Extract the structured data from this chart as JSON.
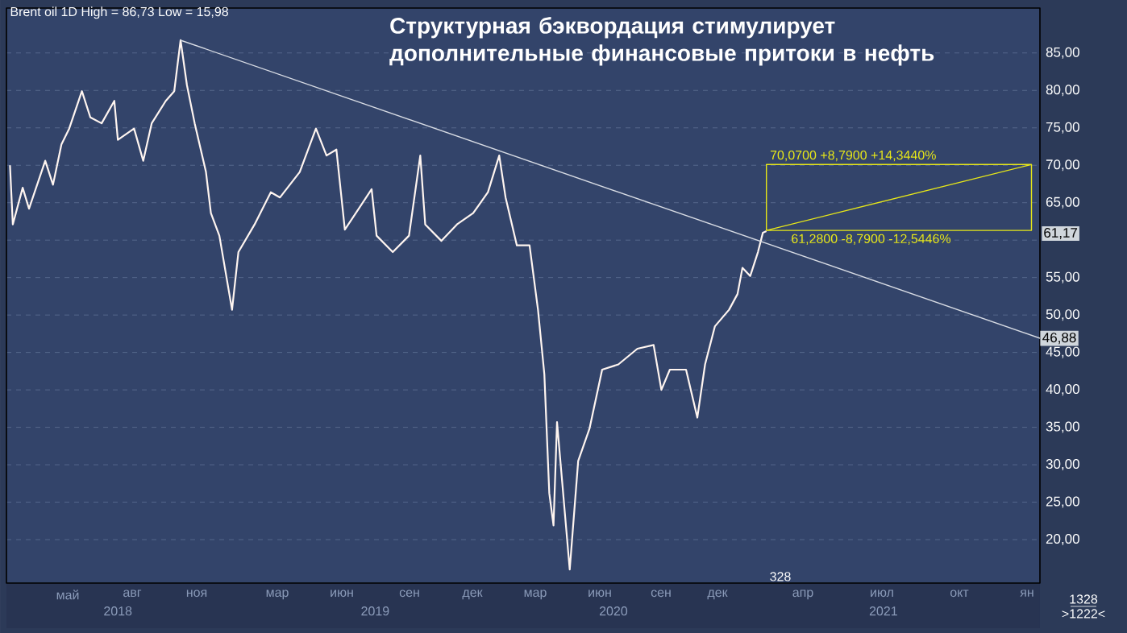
{
  "chart_data": {
    "type": "line",
    "title": "Структурная бэквордация стимулирует дополнительные финансовые притоки в нефть",
    "xlim": [
      "2018-02-08",
      "2022-02-13"
    ],
    "xticks": [
      {
        "value": "2018-07-16",
        "label": "2018"
      },
      {
        "value": "2019-07-16",
        "label": "2019"
      },
      {
        "value": "2020-06-18",
        "label": "2020"
      },
      {
        "value": "2021-07-06",
        "label": "2021"
      }
    ],
    "ylim": [
      14.2,
      91
    ],
    "yticks": [
      {
        "value": 20,
        "label": "20,00"
      },
      {
        "value": 25,
        "label": "25,00"
      },
      {
        "value": 30,
        "label": "30,00"
      },
      {
        "value": 35,
        "label": "35,00"
      },
      {
        "value": 40,
        "label": "40,00"
      },
      {
        "value": 45,
        "label": "45,00"
      },
      {
        "value": 50,
        "label": "50,00"
      },
      {
        "value": 55,
        "label": "55,00"
      },
      {
        "value": 60,
        "label": null
      },
      {
        "value": 65,
        "label": "65,00"
      },
      {
        "value": 70,
        "label": "70,00"
      },
      {
        "value": 75,
        "label": "75,00"
      },
      {
        "value": 80,
        "label": "80,00"
      },
      {
        "value": 85,
        "label": "85,00"
      }
    ],
    "grid": "y",
    "series": [
      {
        "color": "#fff5f0",
        "x": [
          "2018-02-13",
          "2018-02-17",
          "2018-03-03",
          "2018-03-12",
          "2018-04-04",
          "2018-04-15",
          "2018-04-27",
          "2018-05-08",
          "2018-05-26",
          "2018-06-07",
          "2018-06-23",
          "2018-07-11",
          "2018-07-16",
          "2018-08-08",
          "2018-08-21",
          "2018-09-02",
          "2018-09-22",
          "2018-10-04",
          "2018-10-13",
          "2018-10-22",
          "2018-11-02",
          "2018-11-18",
          "2018-11-25",
          "2018-12-07",
          "2018-12-25",
          "2019-01-03",
          "2019-01-26",
          "2019-02-18",
          "2019-03-03",
          "2019-03-31",
          "2019-04-23",
          "2019-05-08",
          "2019-05-22",
          "2019-06-03",
          "2019-07-11",
          "2019-07-18",
          "2019-08-10",
          "2019-09-02",
          "2019-09-18",
          "2019-09-25",
          "2019-10-18",
          "2019-11-09",
          "2019-12-02",
          "2019-12-23",
          "2020-01-08",
          "2020-01-17",
          "2020-02-02",
          "2020-02-20",
          "2020-03-03",
          "2020-03-12",
          "2020-03-19",
          "2020-03-25",
          "2020-03-30",
          "2020-04-17",
          "2020-04-29",
          "2020-05-15",
          "2020-06-02",
          "2020-06-25",
          "2020-07-22",
          "2020-08-14",
          "2020-08-25",
          "2020-09-06",
          "2020-09-29",
          "2020-10-15",
          "2020-10-26",
          "2020-11-09",
          "2020-11-29",
          "2020-12-11",
          "2020-12-18",
          "2020-12-29",
          "2021-01-09",
          "2021-01-16",
          "2021-01-21"
        ],
        "values": [
          70.0,
          62.1,
          67.0,
          64.2,
          70.6,
          67.4,
          72.8,
          74.9,
          79.9,
          76.4,
          75.6,
          78.6,
          73.4,
          74.9,
          70.6,
          75.6,
          78.6,
          79.9,
          86.7,
          80.7,
          75.6,
          69.1,
          63.6,
          60.6,
          50.7,
          58.4,
          62.1,
          66.4,
          65.7,
          69.1,
          74.9,
          71.3,
          72.1,
          61.4,
          66.8,
          60.6,
          58.4,
          60.6,
          71.3,
          62.1,
          59.9,
          62.1,
          63.6,
          66.4,
          71.3,
          65.7,
          59.3,
          59.3,
          50.7,
          42.1,
          26.2,
          21.9,
          35.7,
          16.0,
          30.5,
          34.8,
          42.7,
          43.4,
          45.5,
          46.0,
          40.0,
          42.7,
          42.7,
          36.3,
          43.4,
          48.5,
          50.7,
          52.8,
          56.3,
          55.2,
          58.4,
          61.0,
          61.2
        ]
      },
      {
        "color": "#d8dce4",
        "x": [
          "2018-10-13",
          "2022-02-13"
        ],
        "values": [
          86.7,
          46.9
        ]
      },
      {
        "color": "#e8e818",
        "x": [
          "2021-01-21",
          "2021-01-21",
          "2022-02-01",
          "2022-02-01",
          "2021-01-21",
          "2022-02-01"
        ],
        "values": [
          61.3,
          70.1,
          70.1,
          61.3,
          61.3,
          70.1
        ]
      }
    ],
    "annotations": [
      "Brent oil 1D High = 86,73 Low = 15,98",
      "328",
      "1328",
      ">1222<",
      {
        "text": "70,0700 +8,7900 +14,3440%",
        "x": "2021-01-21",
        "y": 70.07
      },
      {
        "text": "61,2800 -8,7900 -12,5446%",
        "x": "2021-02-20",
        "y": 61.28
      },
      "61,17",
      {
        "text": "46,88",
        "x": "2022-02-13",
        "y": 46.88
      },
      "май",
      "авг",
      "ноя",
      "мар",
      "июн",
      "сен",
      "дек",
      "мар",
      "июн",
      "сен",
      "дек",
      "апр",
      "июл",
      "окт",
      "ян"
    ]
  }
}
